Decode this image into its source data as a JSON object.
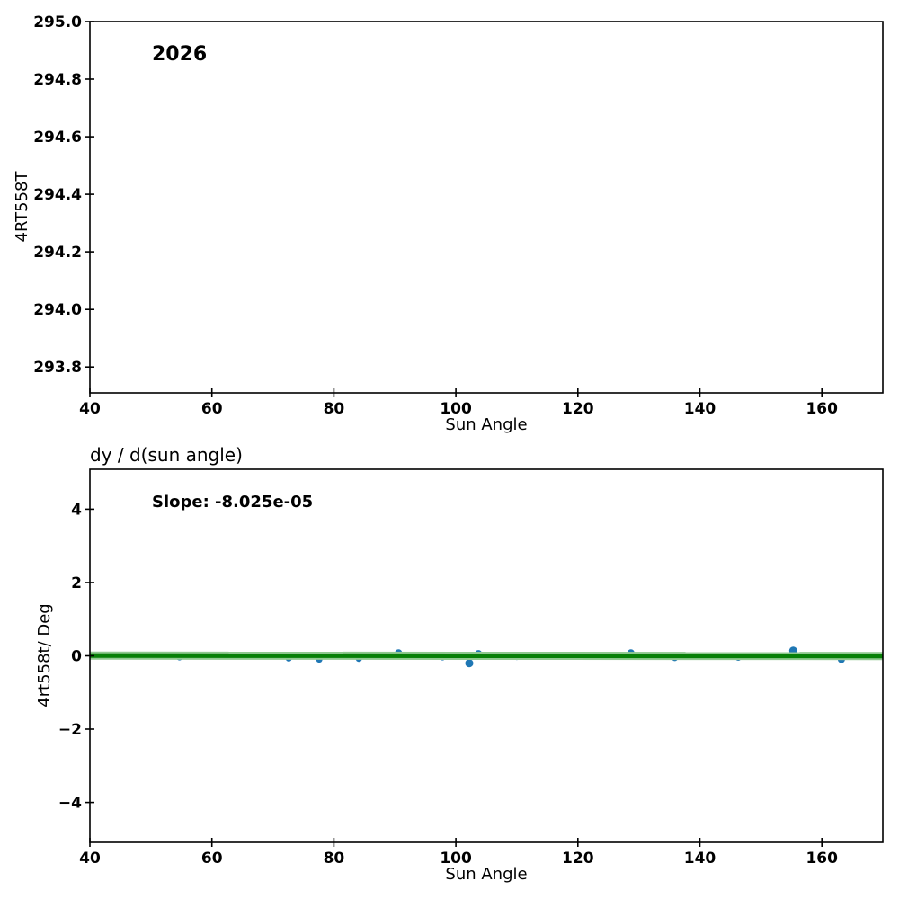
{
  "figure": {
    "background": "#ffffff",
    "text_color": "#000000",
    "spine_color": "#000000"
  },
  "chart_data": [
    {
      "type": "scatter",
      "title": "",
      "xlabel": "Sun Angle",
      "ylabel": "4RT558T",
      "xlim": [
        40,
        170
      ],
      "ylim": [
        293.71,
        295.0
      ],
      "xticks": [
        40,
        60,
        80,
        100,
        120,
        140,
        160
      ],
      "xtick_labels": [
        "40",
        "60",
        "80",
        "100",
        "120",
        "140",
        "160"
      ],
      "yticks": [
        293.8,
        294.0,
        294.2,
        294.4,
        294.6,
        294.8,
        295.0
      ],
      "ytick_labels": [
        "293.8",
        "294.0",
        "294.2",
        "294.4",
        "294.6",
        "294.8",
        "295.0"
      ],
      "grid": false,
      "legend": null,
      "annotations": [
        {
          "text": "2026",
          "x": 50.2,
          "y": 294.9
        }
      ],
      "points": [],
      "series": []
    },
    {
      "type": "scatter",
      "title": "dy / d(sun angle)",
      "xlabel": "Sun Angle",
      "ylabel": "4rt558t/ Deg",
      "xlim": [
        40,
        170
      ],
      "ylim": [
        -5.09,
        5.09
      ],
      "xticks": [
        40,
        60,
        80,
        100,
        120,
        140,
        160
      ],
      "xtick_labels": [
        "40",
        "60",
        "80",
        "100",
        "120",
        "140",
        "160"
      ],
      "yticks": [
        -4,
        -2,
        0,
        2,
        4
      ],
      "ytick_labels": [
        "−4",
        "−2",
        "0",
        "2",
        "4"
      ],
      "grid": false,
      "legend": null,
      "annotations": [
        {
          "text": "Slope: -8.025e-05",
          "x": 50.2,
          "y": 4.1
        }
      ],
      "marker_color": "#1f77b4",
      "points": [
        {
          "x": 54.7,
          "y": -0.04,
          "r": 3.5
        },
        {
          "x": 72.6,
          "y": -0.07,
          "r": 3.5
        },
        {
          "x": 77.6,
          "y": -0.1,
          "r": 3.5
        },
        {
          "x": 84.1,
          "y": -0.08,
          "r": 3.5
        },
        {
          "x": 90.6,
          "y": 0.08,
          "r": 4.0
        },
        {
          "x": 97.8,
          "y": -0.04,
          "r": 3.5
        },
        {
          "x": 102.2,
          "y": -0.2,
          "r": 4.5
        },
        {
          "x": 103.7,
          "y": 0.06,
          "r": 4.0
        },
        {
          "x": 110.0,
          "y": -0.03,
          "r": 3.5
        },
        {
          "x": 128.7,
          "y": 0.08,
          "r": 4.0
        },
        {
          "x": 135.9,
          "y": -0.06,
          "r": 3.5
        },
        {
          "x": 146.3,
          "y": -0.05,
          "r": 3.5
        },
        {
          "x": 155.3,
          "y": 0.14,
          "r": 4.5
        },
        {
          "x": 163.2,
          "y": -0.1,
          "r": 4.0
        }
      ],
      "fit_line": {
        "slope": -8.025e-05,
        "y_at_xmin": 0.005,
        "y_at_xmax": -0.005,
        "color": "#078007",
        "halo_color": "#90c890"
      }
    }
  ]
}
